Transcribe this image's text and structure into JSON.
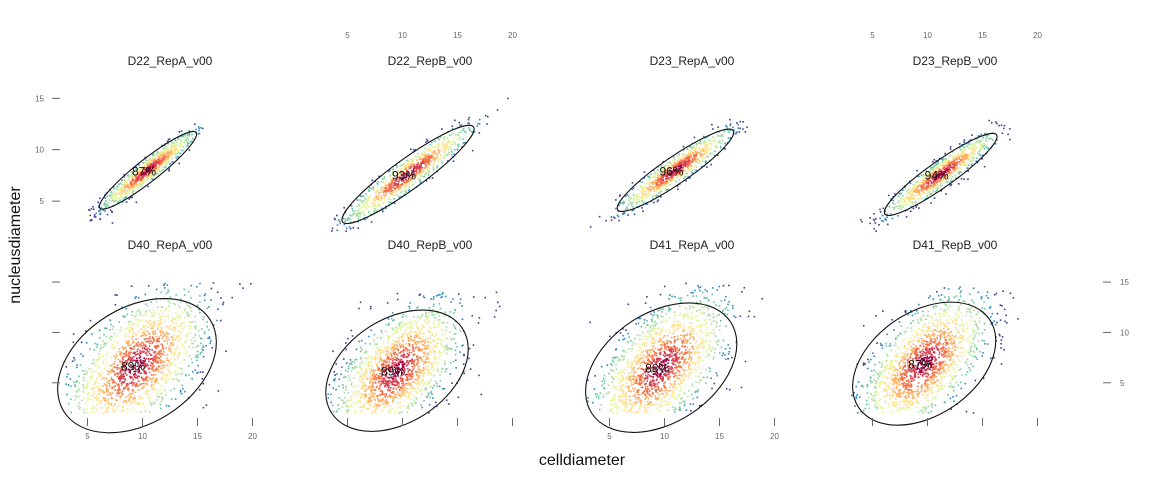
{
  "chart_data": {
    "type": "scatter",
    "subtype": "faceted-density-scatter",
    "xlabel": "celldiameter",
    "ylabel": "nucleusdiameter",
    "xlim": [
      2.5,
      22.5
    ],
    "ylim": [
      2,
      16
    ],
    "x_ticks": [
      5,
      10,
      15,
      20
    ],
    "y_ticks": [
      5,
      10,
      15
    ],
    "color_palette": [
      "#3b3f8f",
      "#3288bd",
      "#66c2a5",
      "#abdda4",
      "#e6f598",
      "#fee08b",
      "#fdae61",
      "#f46d43",
      "#d53e4f",
      "#9e0142"
    ],
    "ellipse_color": "#111111",
    "grid": false,
    "panels": [
      {
        "title": "D22_RepA_v00",
        "coverage_label": "87%",
        "center": [
          10.5,
          8.0
        ],
        "x_range": [
          3.0,
          15.5
        ],
        "y_range": [
          2.0,
          12.5
        ],
        "correlation": 0.985,
        "points": 900
      },
      {
        "title": "D22_RepB_v00",
        "coverage_label": "93%",
        "center": [
          10.5,
          7.6
        ],
        "x_range": [
          3.0,
          20.0
        ],
        "y_range": [
          2.0,
          15.2
        ],
        "correlation": 0.985,
        "points": 900
      },
      {
        "title": "D23_RepA_v00",
        "coverage_label": "96%",
        "center": [
          11.0,
          8.0
        ],
        "x_range": [
          3.0,
          18.0
        ],
        "y_range": [
          2.0,
          13.0
        ],
        "correlation": 0.985,
        "points": 900
      },
      {
        "title": "D23_RepB_v00",
        "coverage_label": "94%",
        "center": [
          11.2,
          7.6
        ],
        "x_range": [
          3.0,
          17.5
        ],
        "y_range": [
          2.0,
          13.0
        ],
        "correlation": 0.985,
        "points": 900
      },
      {
        "title": "D40_RepA_v00",
        "coverage_label": "89%",
        "center": [
          9.5,
          6.7
        ],
        "x_range": [
          3.0,
          22.0
        ],
        "y_range": [
          2.0,
          15.0
        ],
        "correlation": 0.8,
        "points": 1700
      },
      {
        "title": "D40_RepB_v00",
        "coverage_label": "89%",
        "center": [
          9.5,
          6.2
        ],
        "x_range": [
          3.0,
          20.0
        ],
        "y_range": [
          2.0,
          14.0
        ],
        "correlation": 0.8,
        "points": 1700
      },
      {
        "title": "D41_RepA_v00",
        "coverage_label": "88%",
        "center": [
          9.7,
          6.5
        ],
        "x_range": [
          3.0,
          21.0
        ],
        "y_range": [
          2.0,
          15.0
        ],
        "correlation": 0.8,
        "points": 1700
      },
      {
        "title": "D41_RepB_v00",
        "coverage_label": "87%",
        "center": [
          9.7,
          6.9
        ],
        "x_range": [
          3.0,
          20.0
        ],
        "y_range": [
          2.0,
          14.5
        ],
        "correlation": 0.8,
        "points": 1700
      }
    ]
  }
}
